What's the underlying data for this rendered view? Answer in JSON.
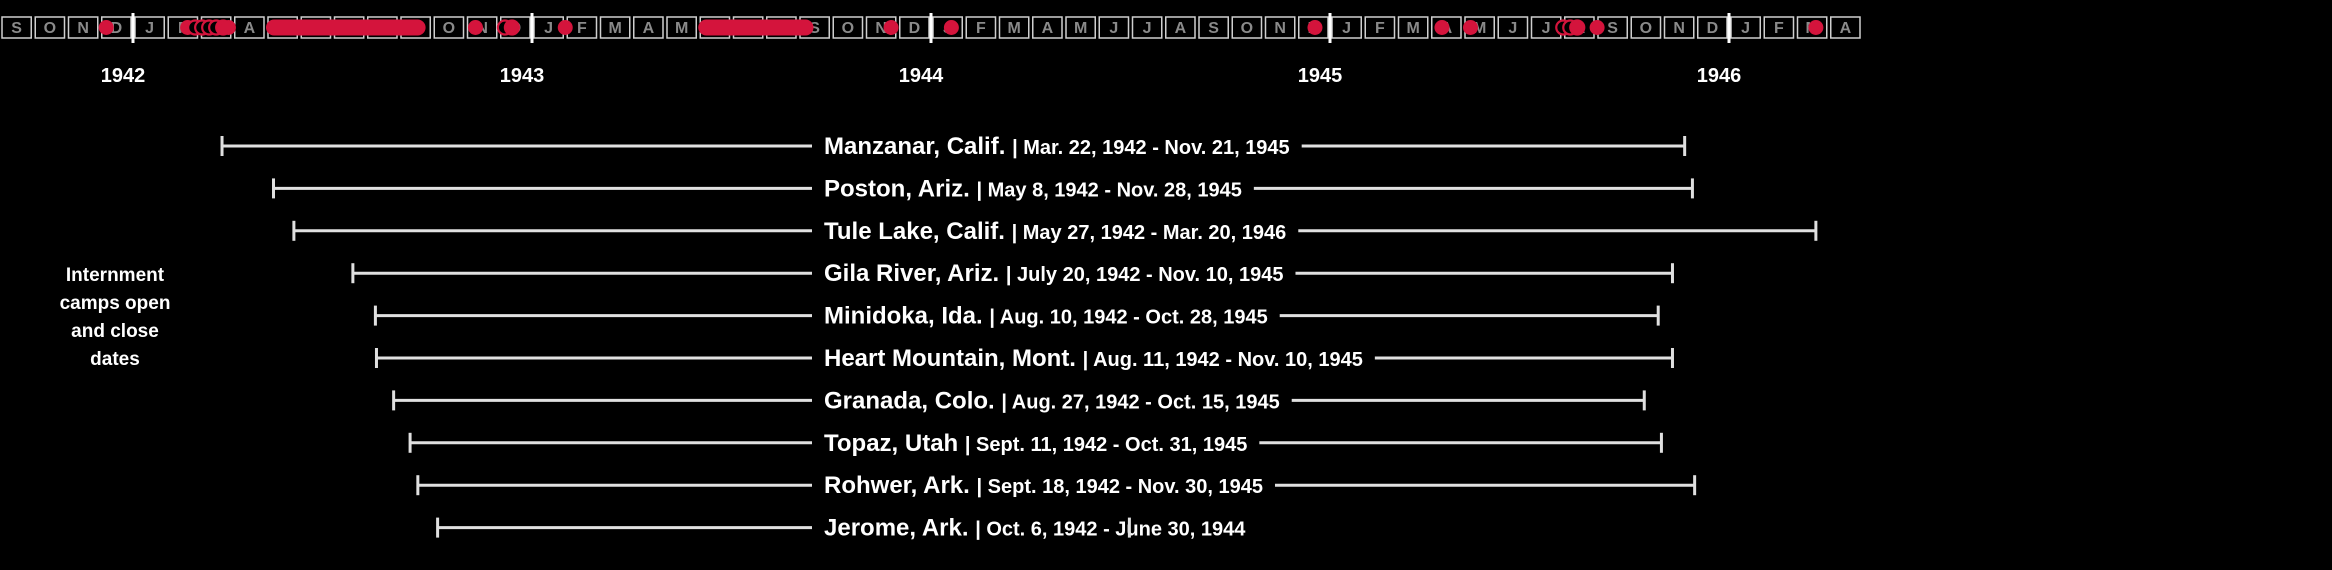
{
  "chart_data": {
    "type": "timeline",
    "side_label": [
      "Internment",
      "camps open",
      "and close",
      "dates"
    ],
    "months": [
      "J",
      "F",
      "M",
      "A",
      "M",
      "J",
      "J",
      "A",
      "S",
      "O",
      "N",
      "D"
    ],
    "years": [
      "1942",
      "1943",
      "1944",
      "1945",
      "1946"
    ],
    "axis_start": "1941-09",
    "axis_end": "1946-04",
    "colors": {
      "background": "#000000",
      "accent": "#d4143c",
      "line": "#e0e0e0",
      "cell_border": "#cfcfcf",
      "cell_text": "#8a8a8a"
    },
    "events": [
      {
        "kind": "dot",
        "date": "1941-12-07"
      },
      {
        "kind": "dot",
        "date": "1942-02-19"
      },
      {
        "kind": "dots",
        "date": "1942-03-10",
        "count": 5
      },
      {
        "kind": "dot",
        "date": "1942-03-28"
      },
      {
        "kind": "bar",
        "start": "1942-05-01",
        "end": "1942-09-25"
      },
      {
        "kind": "dot",
        "date": "1942-11-10"
      },
      {
        "kind": "dots",
        "date": "1942-12-10",
        "count": 2
      },
      {
        "kind": "dot",
        "date": "1943-02-01"
      },
      {
        "kind": "bar",
        "start": "1943-06-01",
        "end": "1943-09-15"
      },
      {
        "kind": "dot",
        "date": "1943-11-25"
      },
      {
        "kind": "dot",
        "date": "1944-01-20"
      },
      {
        "kind": "dot",
        "date": "1944-12-18"
      },
      {
        "kind": "dot",
        "date": "1945-04-12"
      },
      {
        "kind": "dot",
        "date": "1945-05-08"
      },
      {
        "kind": "dots",
        "date": "1945-08-08",
        "count": 3
      },
      {
        "kind": "dot",
        "date": "1945-09-02"
      },
      {
        "kind": "dot",
        "date": "1946-03-20"
      }
    ],
    "camps": [
      {
        "name": "Manzanar, Calif.",
        "dates": "| Mar. 22, 1942 - Nov. 21, 1945",
        "start": "1942-03-22",
        "end": "1945-11-21"
      },
      {
        "name": "Poston, Ariz.",
        "dates": "| May 8, 1942 - Nov. 28, 1945",
        "start": "1942-05-08",
        "end": "1945-11-28"
      },
      {
        "name": "Tule Lake, Calif.",
        "dates": "| May 27, 1942 - Mar. 20, 1946",
        "start": "1942-05-27",
        "end": "1946-03-20"
      },
      {
        "name": "Gila River, Ariz.",
        "dates": "| July 20, 1942 - Nov. 10, 1945",
        "start": "1942-07-20",
        "end": "1945-11-10"
      },
      {
        "name": "Minidoka, Ida.",
        "dates": "| Aug. 10, 1942  - Oct. 28, 1945",
        "start": "1942-08-10",
        "end": "1945-10-28"
      },
      {
        "name": "Heart Mountain, Mont.",
        "dates": "| Aug. 11, 1942 - Nov. 10, 1945",
        "start": "1942-08-11",
        "end": "1945-11-10"
      },
      {
        "name": "Granada, Colo.",
        "dates": "| Aug. 27, 1942 - Oct. 15, 1945",
        "start": "1942-08-27",
        "end": "1945-10-15"
      },
      {
        "name": "Topaz, Utah",
        "dates": "| Sept. 11, 1942 - Oct. 31, 1945",
        "start": "1942-09-11",
        "end": "1945-10-31"
      },
      {
        "name": "Rohwer, Ark.",
        "dates": "| Sept. 18, 1942 - Nov. 30, 1945",
        "start": "1942-09-18",
        "end": "1945-11-30"
      },
      {
        "name": "Jerome, Ark.",
        "dates": "| Oct. 6, 1942 - June 30, 1944",
        "start": "1942-10-06",
        "end": "1944-06-30"
      }
    ]
  }
}
